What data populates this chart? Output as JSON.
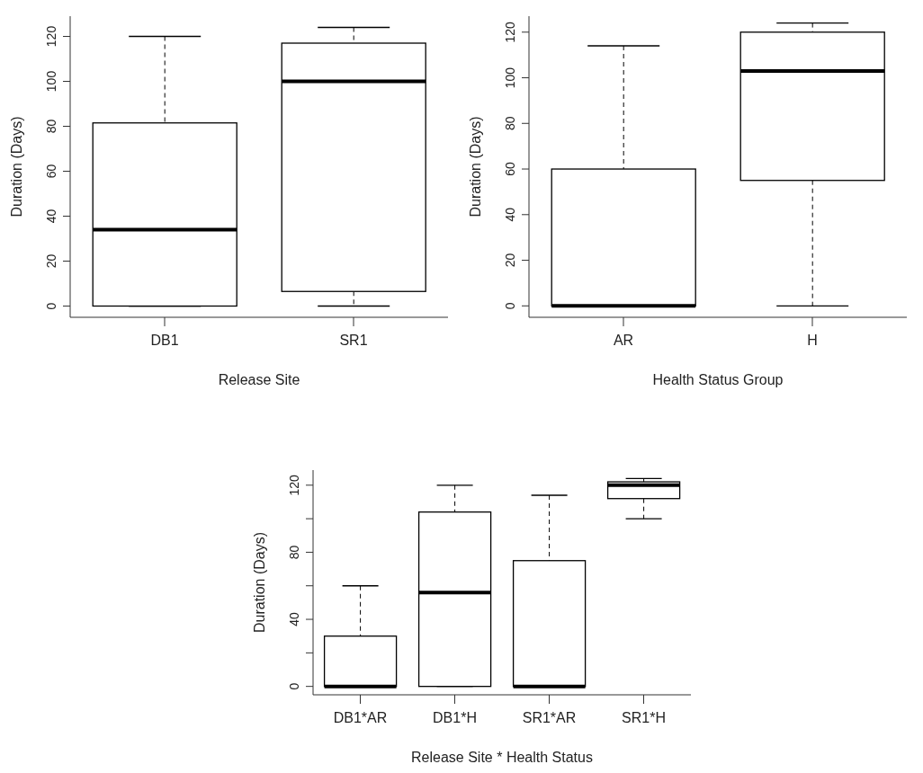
{
  "chart_data": [
    {
      "type": "box",
      "categories": [
        "DB1",
        "SR1"
      ],
      "xlabel": "Release Site",
      "ylabel": "Duration (Days)",
      "ylim": [
        -5,
        129
      ],
      "yticks": [
        0,
        20,
        40,
        60,
        80,
        100,
        120
      ],
      "boxes": [
        {
          "low": 0,
          "q1": 0,
          "median": 34,
          "q3": 81.5,
          "high": 120
        },
        {
          "low": 0,
          "q1": 6.5,
          "median": 100,
          "q3": 117,
          "high": 124
        }
      ]
    },
    {
      "type": "box",
      "categories": [
        "AR",
        "H"
      ],
      "xlabel": "Health Status Group",
      "ylabel": "Duration (Days)",
      "ylim": [
        -5,
        127
      ],
      "yticks": [
        0,
        20,
        40,
        60,
        80,
        100,
        120
      ],
      "boxes": [
        {
          "low": 0,
          "q1": 0,
          "median": 0,
          "q3": 60,
          "high": 114
        },
        {
          "low": 0,
          "q1": 55,
          "median": 103,
          "q3": 120,
          "high": 124
        }
      ]
    },
    {
      "type": "box",
      "categories": [
        "DB1*AR",
        "DB1*H",
        "SR1*AR",
        "SR1*H"
      ],
      "xlabel": "Release Site * Health Status",
      "ylabel": "Duration (Days)",
      "ylim": [
        -5,
        129
      ],
      "yticks": [
        0,
        {
          "value": 20,
          "label": null
        },
        40,
        {
          "value": 60,
          "label": null
        },
        80,
        {
          "value": 100,
          "label": null
        },
        120
      ],
      "boxes": [
        {
          "low": 0,
          "q1": 0,
          "median": 0,
          "q3": 30,
          "high": 60
        },
        {
          "low": 0,
          "q1": 0,
          "median": 56,
          "q3": 104,
          "high": 120
        },
        {
          "low": 0,
          "q1": 0,
          "median": 0,
          "q3": 75,
          "high": 114
        },
        {
          "low": 100,
          "q1": 112,
          "median": 120,
          "q3": 122,
          "high": 124
        }
      ]
    }
  ]
}
